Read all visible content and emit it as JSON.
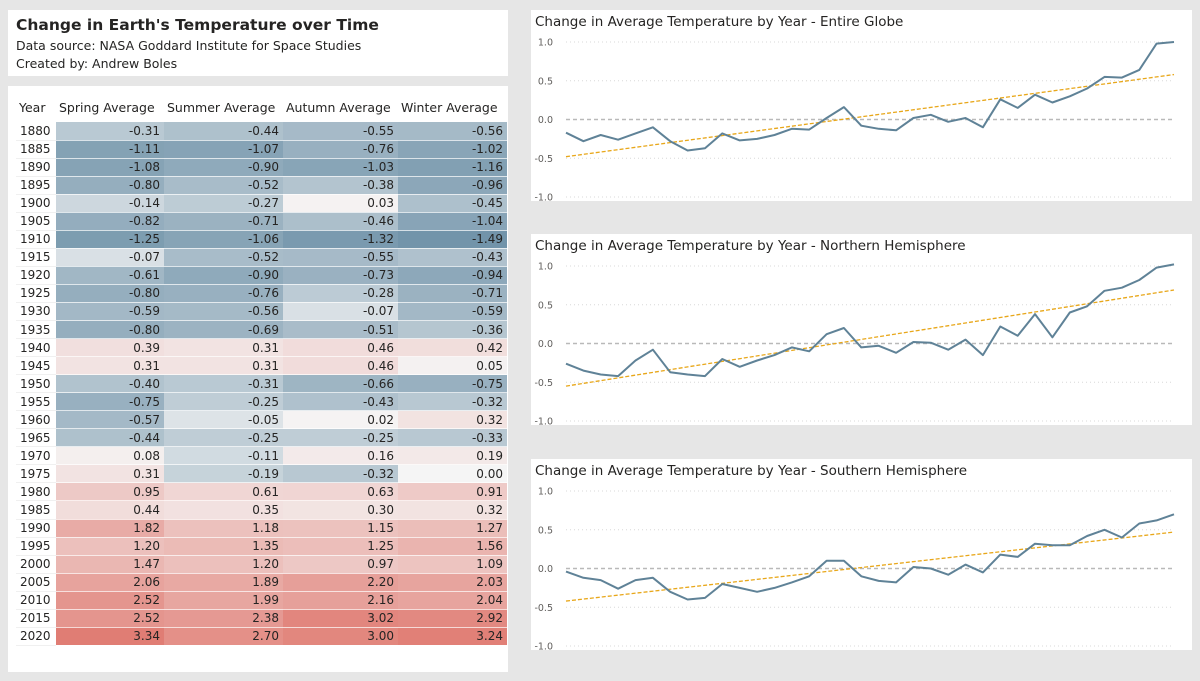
{
  "header": {
    "title": "Change in Earth's Temperature over Time",
    "source": "Data source: NASA Goddard Institute for Space Studies",
    "author": "Created by: Andrew Boles"
  },
  "colors": {
    "line": "#5f8297",
    "trend": "#e8a71a",
    "zero_line": "#b9b9b9",
    "cold": "#6b8fa6",
    "neutral": "#f5f5f5",
    "warm": "#e07b72"
  },
  "table": {
    "columns": [
      "Year",
      "Spring Average",
      "Summer Average",
      "Autumn Average",
      "Winter Average"
    ],
    "rows": [
      [
        "1880",
        "-0.31",
        "-0.44",
        "-0.55",
        "-0.56"
      ],
      [
        "1885",
        "-1.11",
        "-1.07",
        "-0.76",
        "-1.02"
      ],
      [
        "1890",
        "-1.08",
        "-0.90",
        "-1.03",
        "-1.16"
      ],
      [
        "1895",
        "-0.80",
        "-0.52",
        "-0.38",
        "-0.96"
      ],
      [
        "1900",
        "-0.14",
        "-0.27",
        "0.03",
        "-0.45"
      ],
      [
        "1905",
        "-0.82",
        "-0.71",
        "-0.46",
        "-1.04"
      ],
      [
        "1910",
        "-1.25",
        "-1.06",
        "-1.32",
        "-1.49"
      ],
      [
        "1915",
        "-0.07",
        "-0.52",
        "-0.55",
        "-0.43"
      ],
      [
        "1920",
        "-0.61",
        "-0.90",
        "-0.73",
        "-0.94"
      ],
      [
        "1925",
        "-0.80",
        "-0.76",
        "-0.28",
        "-0.71"
      ],
      [
        "1930",
        "-0.59",
        "-0.56",
        "-0.07",
        "-0.59"
      ],
      [
        "1935",
        "-0.80",
        "-0.69",
        "-0.51",
        "-0.36"
      ],
      [
        "1940",
        "0.39",
        "0.31",
        "0.46",
        "0.42"
      ],
      [
        "1945",
        "0.31",
        "0.31",
        "0.46",
        "0.05"
      ],
      [
        "1950",
        "-0.40",
        "-0.31",
        "-0.66",
        "-0.75"
      ],
      [
        "1955",
        "-0.75",
        "-0.25",
        "-0.43",
        "-0.32"
      ],
      [
        "1960",
        "-0.57",
        "-0.05",
        "0.02",
        "0.32"
      ],
      [
        "1965",
        "-0.44",
        "-0.25",
        "-0.25",
        "-0.33"
      ],
      [
        "1970",
        "0.08",
        "-0.11",
        "0.16",
        "0.19"
      ],
      [
        "1975",
        "0.31",
        "-0.19",
        "-0.32",
        "0.00"
      ],
      [
        "1980",
        "0.95",
        "0.61",
        "0.63",
        "0.91"
      ],
      [
        "1985",
        "0.44",
        "0.35",
        "0.30",
        "0.32"
      ],
      [
        "1990",
        "1.82",
        "1.18",
        "1.15",
        "1.27"
      ],
      [
        "1995",
        "1.20",
        "1.35",
        "1.25",
        "1.56"
      ],
      [
        "2000",
        "1.47",
        "1.20",
        "0.97",
        "1.09"
      ],
      [
        "2005",
        "2.06",
        "1.89",
        "2.20",
        "2.03"
      ],
      [
        "2010",
        "2.52",
        "1.99",
        "2.16",
        "2.04"
      ],
      [
        "2015",
        "2.52",
        "2.38",
        "3.02",
        "2.92"
      ],
      [
        "2020",
        "3.34",
        "2.70",
        "3.00",
        "3.24"
      ]
    ]
  },
  "chart_data": [
    {
      "type": "line",
      "title": "Change in Average Temperature by Year - Entire Globe",
      "xlabel": "",
      "ylabel": "",
      "xlim": [
        1880,
        2020
      ],
      "ylim": [
        -1.0,
        1.0
      ],
      "x_ticks": [
        "1880",
        "1900",
        "1920",
        "1940",
        "1960",
        "1980",
        "2000",
        "2020"
      ],
      "y_ticks": [
        "1.0",
        "0.5",
        "0.0",
        "-0.5",
        "-1.0"
      ],
      "reference_line": 0,
      "trend": [
        [
          1880,
          -0.48
        ],
        [
          2020,
          0.58
        ]
      ],
      "x": [
        1880,
        1884,
        1888,
        1892,
        1896,
        1900,
        1904,
        1908,
        1912,
        1916,
        1920,
        1924,
        1928,
        1932,
        1936,
        1940,
        1944,
        1948,
        1952,
        1956,
        1960,
        1964,
        1968,
        1972,
        1976,
        1980,
        1984,
        1988,
        1992,
        1996,
        2000,
        2004,
        2008,
        2012,
        2016,
        2020
      ],
      "values": [
        -0.17,
        -0.28,
        -0.2,
        -0.26,
        -0.18,
        -0.1,
        -0.28,
        -0.4,
        -0.37,
        -0.18,
        -0.27,
        -0.25,
        -0.2,
        -0.12,
        -0.13,
        0.02,
        0.16,
        -0.08,
        -0.12,
        -0.14,
        0.02,
        0.06,
        -0.03,
        0.02,
        -0.1,
        0.26,
        0.15,
        0.32,
        0.22,
        0.3,
        0.4,
        0.55,
        0.54,
        0.64,
        0.98,
        1.0
      ]
    },
    {
      "type": "line",
      "title": "Change in Average Temperature by Year - Northern Hemisphere",
      "xlabel": "",
      "ylabel": "",
      "xlim": [
        1880,
        2020
      ],
      "ylim": [
        -1.0,
        1.0
      ],
      "x_ticks": [
        "1880",
        "1900",
        "1920",
        "1940",
        "1960",
        "1980",
        "2000",
        "2020"
      ],
      "y_ticks": [
        "1.0",
        "0.5",
        "0.0",
        "-0.5",
        "-1.0"
      ],
      "reference_line": 0,
      "trend": [
        [
          1880,
          -0.55
        ],
        [
          2020,
          0.69
        ]
      ],
      "x": [
        1880,
        1884,
        1888,
        1892,
        1896,
        1900,
        1904,
        1908,
        1912,
        1916,
        1920,
        1924,
        1928,
        1932,
        1936,
        1940,
        1944,
        1948,
        1952,
        1956,
        1960,
        1964,
        1968,
        1972,
        1976,
        1980,
        1984,
        1988,
        1992,
        1996,
        2000,
        2004,
        2008,
        2012,
        2016,
        2020
      ],
      "values": [
        -0.26,
        -0.35,
        -0.4,
        -0.42,
        -0.22,
        -0.08,
        -0.37,
        -0.4,
        -0.42,
        -0.2,
        -0.3,
        -0.22,
        -0.15,
        -0.05,
        -0.1,
        0.12,
        0.2,
        -0.05,
        -0.03,
        -0.12,
        0.02,
        0.01,
        -0.08,
        0.05,
        -0.15,
        0.22,
        0.1,
        0.38,
        0.08,
        0.4,
        0.48,
        0.68,
        0.72,
        0.82,
        0.98,
        1.02
      ]
    },
    {
      "type": "line",
      "title": "Change in Average Temperature by Year - Southern Hemisphere",
      "xlabel": "",
      "ylabel": "",
      "xlim": [
        1880,
        2020
      ],
      "ylim": [
        -1.0,
        1.0
      ],
      "x_ticks": [
        "1880",
        "1900",
        "1920",
        "1940",
        "1960",
        "1980",
        "2000",
        "2020"
      ],
      "y_ticks": [
        "1.0",
        "0.5",
        "0.0",
        "-0.5",
        "-1.0"
      ],
      "reference_line": 0,
      "trend": [
        [
          1880,
          -0.42
        ],
        [
          2020,
          0.47
        ]
      ],
      "x": [
        1880,
        1884,
        1888,
        1892,
        1896,
        1900,
        1904,
        1908,
        1912,
        1916,
        1920,
        1924,
        1928,
        1932,
        1936,
        1940,
        1944,
        1948,
        1952,
        1956,
        1960,
        1964,
        1968,
        1972,
        1976,
        1980,
        1984,
        1988,
        1992,
        1996,
        2000,
        2004,
        2008,
        2012,
        2016,
        2020
      ],
      "values": [
        -0.04,
        -0.12,
        -0.15,
        -0.26,
        -0.15,
        -0.12,
        -0.3,
        -0.4,
        -0.38,
        -0.2,
        -0.25,
        -0.3,
        -0.25,
        -0.18,
        -0.1,
        0.1,
        0.1,
        -0.1,
        -0.16,
        -0.18,
        0.02,
        0.0,
        -0.08,
        0.05,
        -0.05,
        0.18,
        0.15,
        0.32,
        0.3,
        0.3,
        0.42,
        0.5,
        0.4,
        0.58,
        0.62,
        0.7
      ]
    }
  ]
}
